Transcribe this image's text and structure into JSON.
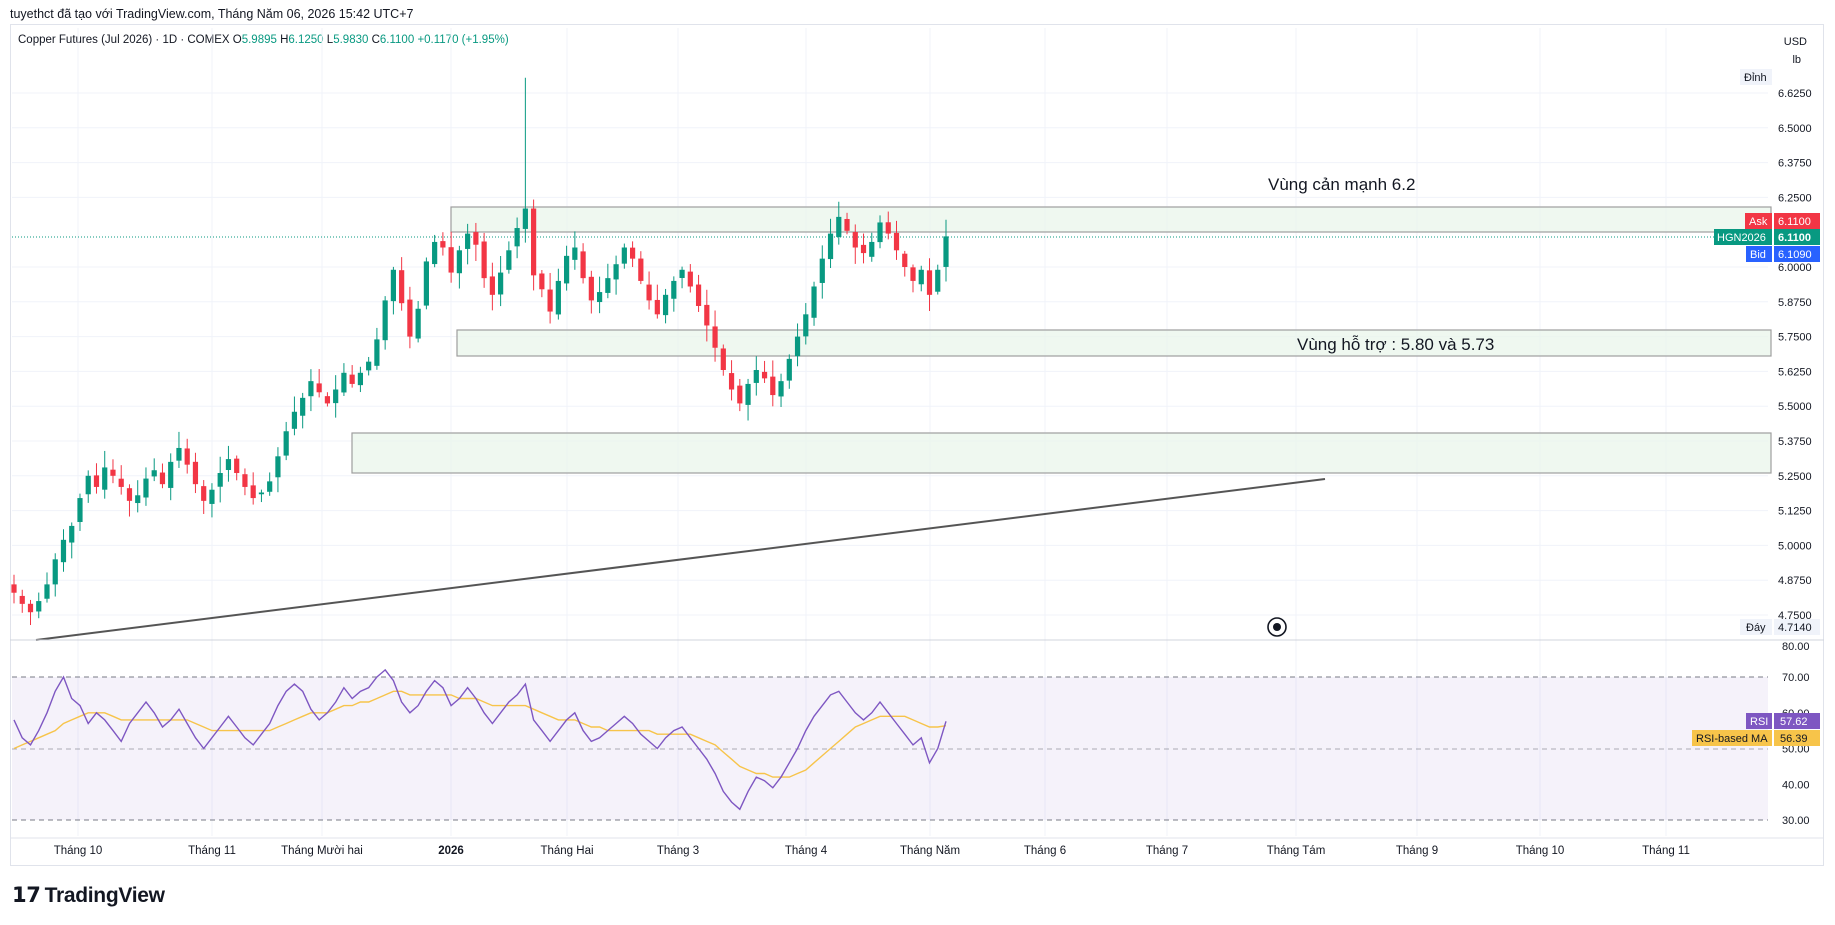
{
  "header": {
    "note": "tuyethct đã tạo với TradingView.com, Tháng Năm 06, 2026 15:42 UTC+7",
    "symbol_title": "Copper Futures (Jul 2026) · 1D · COMEX",
    "ohlc": {
      "o_label": "O",
      "o": "5.9895",
      "h_label": "H",
      "h": "6.1250",
      "l_label": "L",
      "l": "5.9830",
      "c_label": "C",
      "c": "6.1100",
      "change": "+0.1170 (+1.95%)"
    }
  },
  "price_scale": {
    "currency": "USD",
    "unit": "lb",
    "ticks": [
      "6.6250",
      "6.5000",
      "6.3750",
      "6.2500",
      "6.0000",
      "5.8750",
      "5.7500",
      "5.6250",
      "5.5000",
      "5.3750",
      "5.2500",
      "5.1250",
      "5.0000",
      "4.8750",
      "4.7500"
    ],
    "top_label": "Đỉnh",
    "bottom_label": "Đáy",
    "bottom_value": "4.7140",
    "ask_label": "Ask",
    "ask_value": "6.1100",
    "symbol_label": "HGN2026",
    "last_value": "6.1100",
    "bid_label": "Bid",
    "bid_value": "6.1090"
  },
  "annotations": {
    "resistance": "Vùng cản mạnh 6.2",
    "support": "Vùng hỗ trợ : 5.80 và 5.73"
  },
  "rsi_scale": {
    "ticks": [
      "80.00",
      "70.00",
      "60.00",
      "50.00",
      "40.00",
      "30.00"
    ],
    "rsi_label": "RSI",
    "rsi_value": "57.62",
    "ma_label": "RSI-based MA",
    "ma_value": "56.39"
  },
  "time_axis": [
    "Tháng 10",
    "Tháng 11",
    "Tháng Mười hai",
    "2026",
    "Tháng Hai",
    "Tháng 3",
    "Tháng 4",
    "Tháng Năm",
    "Tháng 6",
    "Tháng 7",
    "Tháng Tám",
    "Tháng 9",
    "Tháng 10",
    "Tháng 11"
  ],
  "brand": "TradingView",
  "colors": {
    "up": "#089981",
    "down": "#f23645",
    "rsi": "#7e57c2",
    "rsi_ma": "#f7c44a",
    "zone": "#e8f5e9",
    "bid": "#2962ff"
  },
  "chart_data": [
    {
      "type": "candlestick",
      "title": "Copper Futures (Jul 2026) · 1D · COMEX",
      "ylim": [
        4.7,
        6.7
      ],
      "grid": true,
      "x_labels": [
        "Tháng 10",
        "Tháng 11",
        "Tháng Mười hai",
        "2026",
        "Tháng Hai",
        "Tháng 3",
        "Tháng 4",
        "Tháng Năm"
      ],
      "close_path": [
        4.83,
        4.79,
        4.76,
        4.8,
        4.86,
        4.95,
        5.02,
        5.07,
        5.17,
        5.25,
        5.21,
        5.28,
        5.25,
        5.21,
        5.16,
        5.18,
        5.24,
        5.27,
        5.22,
        5.3,
        5.35,
        5.29,
        5.22,
        5.16,
        5.2,
        5.26,
        5.31,
        5.26,
        5.21,
        5.17,
        5.19,
        5.23,
        5.32,
        5.41,
        5.48,
        5.53,
        5.59,
        5.55,
        5.51,
        5.56,
        5.62,
        5.58,
        5.62,
        5.66,
        5.74,
        5.88,
        5.99,
        5.87,
        5.75,
        5.85,
        6.02,
        6.09,
        6.07,
        5.98,
        6.06,
        6.12,
        6.08,
        5.96,
        5.9,
        5.98,
        6.06,
        6.14,
        6.21,
        5.97,
        5.92,
        5.84,
        5.95,
        6.04,
        6.07,
        5.96,
        5.88,
        5.91,
        5.96,
        6.01,
        6.07,
        6.03,
        5.95,
        5.88,
        5.83,
        5.9,
        5.95,
        5.99,
        5.93,
        5.86,
        5.79,
        5.71,
        5.63,
        5.56,
        5.51,
        5.58,
        5.63,
        5.6,
        5.54,
        5.59,
        5.67,
        5.75,
        5.83,
        5.93,
        6.03,
        6.12,
        6.18,
        6.13,
        6.07,
        6.05,
        6.09,
        6.16,
        6.12,
        6.06,
        6.0,
        5.95,
        5.99,
        5.9,
        5.99,
        6.11
      ],
      "high_annotation": 6.68,
      "low_annotation": 4.714,
      "zones": [
        {
          "label": "Vùng cản mạnh 6.2",
          "from": 6.09,
          "to": 6.22
        },
        {
          "label": "Vùng hỗ trợ : 5.80 và 5.73",
          "from": 5.68,
          "to": 5.77
        },
        {
          "label": "",
          "from": 5.26,
          "to": 5.41
        }
      ],
      "trendline": {
        "start": {
          "x": "Tháng 10",
          "y": 4.72
        },
        "end": {
          "x": "Tháng 7",
          "y": 5.23
        }
      }
    },
    {
      "type": "line",
      "title": "RSI",
      "ylim": [
        30,
        80
      ],
      "bands": [
        30,
        50,
        70
      ],
      "series": [
        {
          "name": "RSI",
          "values": [
            58,
            53,
            51,
            55,
            60,
            66,
            70,
            64,
            62,
            57,
            60,
            58,
            55,
            52,
            57,
            60,
            63,
            60,
            56,
            58,
            61,
            57,
            53,
            50,
            53,
            56,
            59,
            56,
            53,
            51,
            54,
            57,
            62,
            66,
            68,
            66,
            61,
            58,
            60,
            63,
            67,
            64,
            66,
            67,
            70,
            72,
            69,
            63,
            60,
            62,
            66,
            69,
            67,
            62,
            64,
            67,
            64,
            60,
            57,
            60,
            63,
            65,
            68,
            58,
            55,
            52,
            55,
            58,
            60,
            55,
            52,
            53,
            55,
            57,
            59,
            57,
            54,
            52,
            50,
            53,
            55,
            56,
            53,
            50,
            47,
            43,
            38,
            35,
            33,
            38,
            42,
            41,
            39,
            42,
            46,
            50,
            55,
            59,
            62,
            65,
            66,
            63,
            60,
            58,
            60,
            63,
            60,
            57,
            54,
            51,
            53,
            46,
            50,
            57.62
          ]
        },
        {
          "name": "RSI-based MA",
          "values": [
            50,
            51,
            52,
            53,
            54,
            55,
            57,
            58,
            59,
            60,
            60,
            60,
            59,
            58,
            58,
            58,
            58,
            58,
            58,
            58,
            58,
            58,
            57,
            56,
            55,
            55,
            55,
            55,
            55,
            55,
            55,
            55,
            56,
            57,
            58,
            59,
            60,
            60,
            60,
            61,
            62,
            62,
            63,
            63,
            64,
            65,
            66,
            66,
            65,
            65,
            65,
            65,
            65,
            65,
            64,
            64,
            64,
            63,
            62,
            62,
            62,
            62,
            62,
            61,
            60,
            59,
            58,
            58,
            58,
            57,
            56,
            56,
            55,
            55,
            55,
            55,
            55,
            55,
            54,
            54,
            54,
            54,
            54,
            53,
            52,
            51,
            49,
            47,
            45,
            44,
            43,
            43,
            42,
            42,
            42,
            43,
            44,
            46,
            48,
            50,
            52,
            54,
            56,
            57,
            58,
            59,
            59,
            59,
            59,
            58,
            57,
            56,
            56,
            56.39
          ]
        }
      ]
    }
  ]
}
